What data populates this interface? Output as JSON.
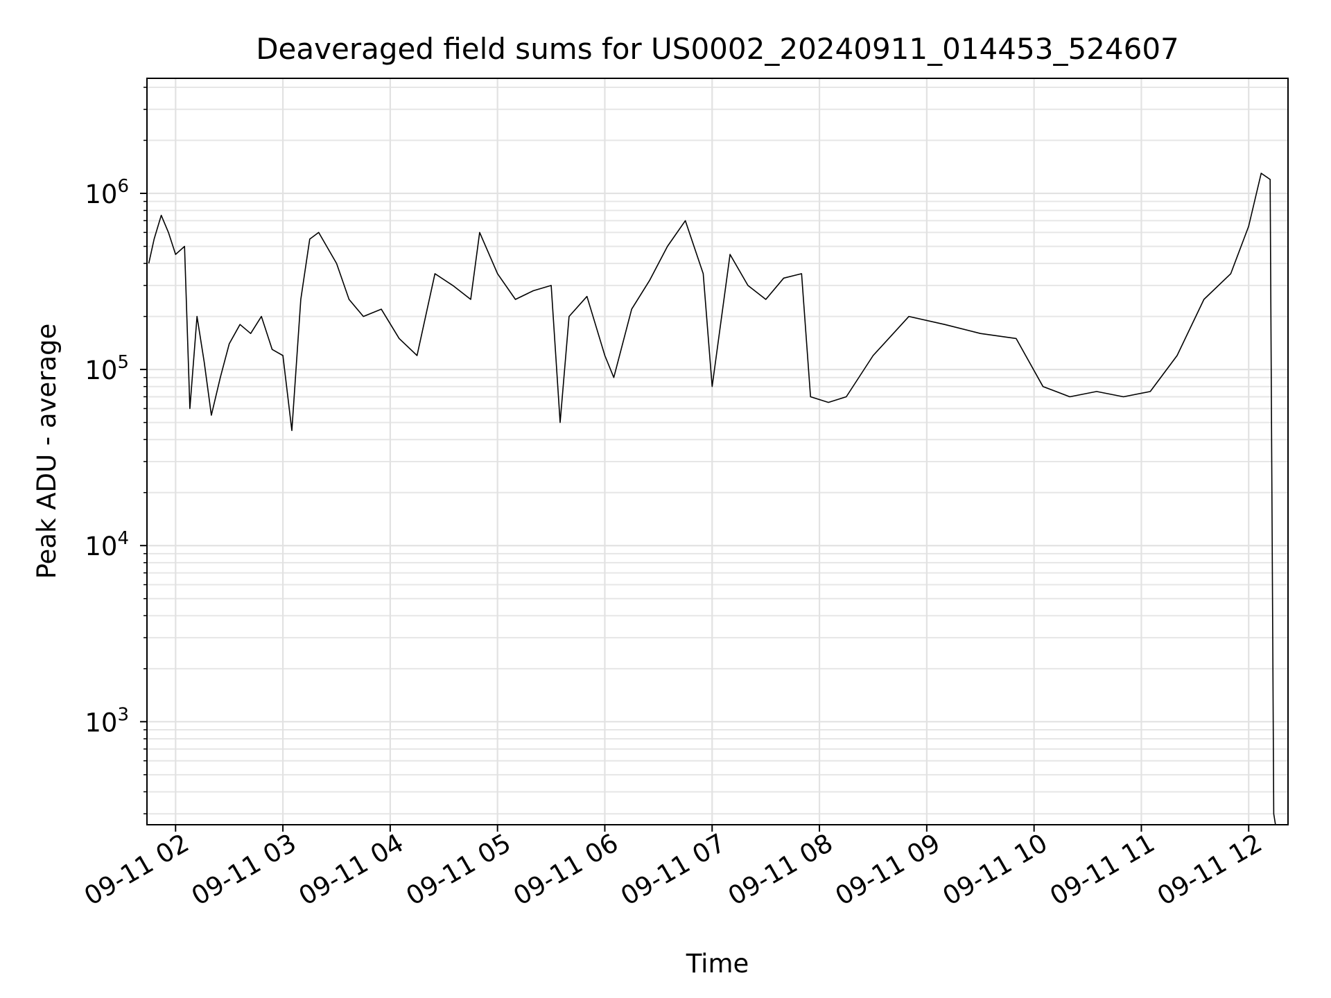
{
  "chart_data": {
    "type": "line",
    "title": "Deaveraged field sums for US0002_20240911_014453_524607",
    "xlabel": "Time",
    "ylabel": "Peak ADU - average",
    "x_tick_labels": [
      "09-11 02",
      "09-11 03",
      "09-11 04",
      "09-11 05",
      "09-11 06",
      "09-11 07",
      "09-11 08",
      "09-11 09",
      "09-11 10",
      "09-11 11",
      "09-11 12"
    ],
    "x_ticks": [
      "2024-09-11 02:00",
      "2024-09-11 03:00",
      "2024-09-11 04:00",
      "2024-09-11 05:00",
      "2024-09-11 06:00",
      "2024-09-11 07:00",
      "2024-09-11 08:00",
      "2024-09-11 09:00",
      "2024-09-11 10:00",
      "2024-09-11 11:00",
      "2024-09-11 12:00"
    ],
    "xlim": [
      "2024-09-11 01:44",
      "2024-09-11 12:22"
    ],
    "y_scale": "log",
    "ylim": [
      260,
      4500000
    ],
    "y_ticks": [
      1000,
      10000,
      100000,
      1000000
    ],
    "y_tick_labels": [
      {
        "base": "10",
        "exp": "3"
      },
      {
        "base": "10",
        "exp": "4"
      },
      {
        "base": "10",
        "exp": "5"
      },
      {
        "base": "10",
        "exp": "6"
      }
    ],
    "grid": true,
    "line_color": "#000000",
    "series": [
      {
        "points": [
          [
            "2024-09-11 01:45",
            400000
          ],
          [
            "2024-09-11 01:48",
            550000
          ],
          [
            "2024-09-11 01:52",
            750000
          ],
          [
            "2024-09-11 01:56",
            600000
          ],
          [
            "2024-09-11 02:00",
            450000
          ],
          [
            "2024-09-11 02:05",
            500000
          ],
          [
            "2024-09-11 02:08",
            60000
          ],
          [
            "2024-09-11 02:12",
            200000
          ],
          [
            "2024-09-11 02:16",
            110000
          ],
          [
            "2024-09-11 02:20",
            55000
          ],
          [
            "2024-09-11 02:25",
            90000
          ],
          [
            "2024-09-11 02:30",
            140000
          ],
          [
            "2024-09-11 02:36",
            180000
          ],
          [
            "2024-09-11 02:42",
            160000
          ],
          [
            "2024-09-11 02:48",
            200000
          ],
          [
            "2024-09-11 02:54",
            130000
          ],
          [
            "2024-09-11 03:00",
            120000
          ],
          [
            "2024-09-11 03:05",
            45000
          ],
          [
            "2024-09-11 03:10",
            250000
          ],
          [
            "2024-09-11 03:15",
            550000
          ],
          [
            "2024-09-11 03:20",
            600000
          ],
          [
            "2024-09-11 03:30",
            400000
          ],
          [
            "2024-09-11 03:37",
            250000
          ],
          [
            "2024-09-11 03:45",
            200000
          ],
          [
            "2024-09-11 03:55",
            220000
          ],
          [
            "2024-09-11 04:05",
            150000
          ],
          [
            "2024-09-11 04:15",
            120000
          ],
          [
            "2024-09-11 04:25",
            350000
          ],
          [
            "2024-09-11 04:35",
            300000
          ],
          [
            "2024-09-11 04:45",
            250000
          ],
          [
            "2024-09-11 04:50",
            600000
          ],
          [
            "2024-09-11 05:00",
            350000
          ],
          [
            "2024-09-11 05:10",
            250000
          ],
          [
            "2024-09-11 05:20",
            280000
          ],
          [
            "2024-09-11 05:30",
            300000
          ],
          [
            "2024-09-11 05:35",
            50000
          ],
          [
            "2024-09-11 05:40",
            200000
          ],
          [
            "2024-09-11 05:50",
            260000
          ],
          [
            "2024-09-11 06:00",
            120000
          ],
          [
            "2024-09-11 06:05",
            90000
          ],
          [
            "2024-09-11 06:15",
            220000
          ],
          [
            "2024-09-11 06:25",
            320000
          ],
          [
            "2024-09-11 06:35",
            500000
          ],
          [
            "2024-09-11 06:45",
            700000
          ],
          [
            "2024-09-11 06:55",
            350000
          ],
          [
            "2024-09-11 07:00",
            80000
          ],
          [
            "2024-09-11 07:10",
            450000
          ],
          [
            "2024-09-11 07:20",
            300000
          ],
          [
            "2024-09-11 07:30",
            250000
          ],
          [
            "2024-09-11 07:40",
            330000
          ],
          [
            "2024-09-11 07:50",
            350000
          ],
          [
            "2024-09-11 07:55",
            70000
          ],
          [
            "2024-09-11 08:05",
            65000
          ],
          [
            "2024-09-11 08:15",
            70000
          ],
          [
            "2024-09-11 08:30",
            120000
          ],
          [
            "2024-09-11 08:50",
            200000
          ],
          [
            "2024-09-11 09:10",
            180000
          ],
          [
            "2024-09-11 09:30",
            160000
          ],
          [
            "2024-09-11 09:50",
            150000
          ],
          [
            "2024-09-11 10:05",
            80000
          ],
          [
            "2024-09-11 10:20",
            70000
          ],
          [
            "2024-09-11 10:35",
            75000
          ],
          [
            "2024-09-11 10:50",
            70000
          ],
          [
            "2024-09-11 11:05",
            75000
          ],
          [
            "2024-09-11 11:20",
            120000
          ],
          [
            "2024-09-11 11:35",
            250000
          ],
          [
            "2024-09-11 11:50",
            350000
          ],
          [
            "2024-09-11 12:00",
            650000
          ],
          [
            "2024-09-11 12:07",
            1300000
          ],
          [
            "2024-09-11 12:12",
            1200000
          ],
          [
            "2024-09-11 12:14",
            300
          ],
          [
            "2024-09-11 12:15",
            260
          ]
        ]
      }
    ]
  }
}
